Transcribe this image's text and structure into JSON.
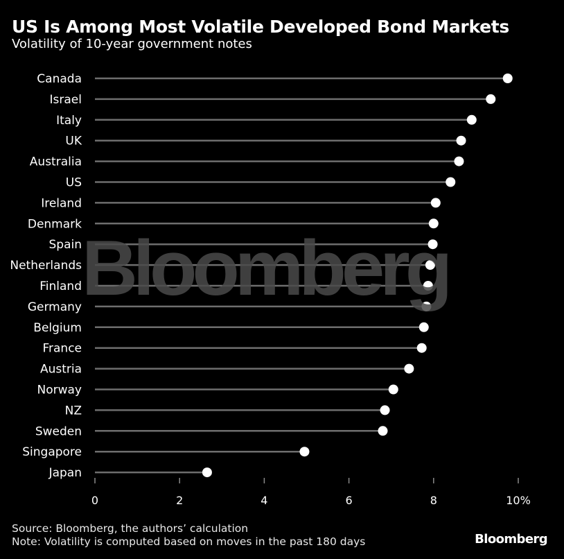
{
  "header": {
    "title": "US Is Among Most Volatile Developed Bond Markets",
    "subtitle": "Volatility of 10-year government notes"
  },
  "footer": {
    "source": "Source: Bloomberg, the authors’ calculation",
    "note": "Note: Volatility is computed based on moves in the past 180 days",
    "brand": "Bloomberg"
  },
  "watermark": "Bloomberg",
  "colors": {
    "background": "#000000",
    "text": "#ffffff",
    "stem": "#6e6e6e",
    "dot": "#ffffff"
  },
  "chart_data": {
    "type": "lollipop",
    "title": "US Is Among Most Volatile Developed Bond Markets",
    "subtitle": "Volatility of 10-year government notes",
    "xlabel": "",
    "ylabel": "",
    "xlim": [
      0,
      10
    ],
    "x_ticks": [
      0,
      2,
      4,
      6,
      8,
      10
    ],
    "x_tick_labels": [
      "0",
      "2",
      "4",
      "6",
      "8",
      "10%"
    ],
    "categories": [
      "Canada",
      "Israel",
      "Italy",
      "UK",
      "Australia",
      "US",
      "Ireland",
      "Denmark",
      "Spain",
      "Netherlands",
      "Finland",
      "Germany",
      "Belgium",
      "France",
      "Austria",
      "Norway",
      "NZ",
      "Sweden",
      "Singapore",
      "Japan"
    ],
    "values": [
      9.75,
      9.35,
      8.9,
      8.65,
      8.6,
      8.4,
      8.05,
      8.0,
      7.98,
      7.92,
      7.87,
      7.83,
      7.77,
      7.72,
      7.42,
      7.05,
      6.85,
      6.8,
      4.95,
      2.65
    ]
  }
}
